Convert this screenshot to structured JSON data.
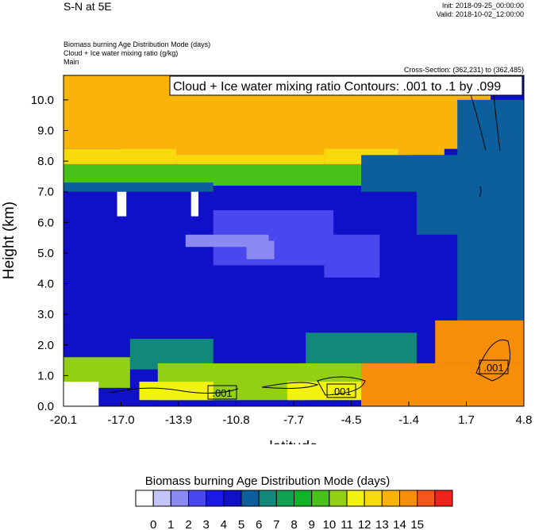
{
  "header": {
    "title": "S-N at 5E",
    "init": "Init: 2018-09-25_00:00:00",
    "valid": "Valid: 2018-10-02_12:00:00",
    "field1": "Biomass burning Age Distribution Mode   (days)",
    "field2": "Cloud + Ice water mixing ratio   (g/kg)",
    "field3": "Main",
    "cross_section": "Cross-Section: (362,231) to (362,485)"
  },
  "chart_data": {
    "type": "heatmap",
    "title": "S-N at 5E",
    "xlabel": "latitude",
    "ylabel": "Height (km)",
    "xlim": [
      -20.1,
      4.8
    ],
    "ylim": [
      0.0,
      10.8
    ],
    "x_ticks": [
      "-20.1",
      "-17.0",
      "-13.9",
      "-10.8",
      "-7.7",
      "-4.5",
      "-1.4",
      "1.7",
      "4.8"
    ],
    "y_ticks": [
      "0.0",
      "1.0",
      "2.0",
      "3.0",
      "4.0",
      "5.0",
      "6.0",
      "7.0",
      "8.0",
      "9.0",
      "10.0"
    ],
    "contour_label": "Cloud + Ice water mixing ratio Contours: .001 to .1 by .099",
    "contour_value_labels": [
      ".001",
      ".001",
      ".001"
    ],
    "colorbar": {
      "title": "Biomass burning Age Distribution Mode  (days)",
      "levels": [
        "0",
        "1",
        "2",
        "3",
        "4",
        "5",
        "6",
        "7",
        "8",
        "9",
        "10",
        "11",
        "12",
        "13",
        "14",
        "15"
      ],
      "colors": [
        "#ffffff",
        "#c4c4f8",
        "#8a8af2",
        "#4848ee",
        "#1a1ae6",
        "#0f10c8",
        "#0d5f9c",
        "#11887a",
        "#10a050",
        "#11b328",
        "#49c11b",
        "#93d014",
        "#f2f20e",
        "#f7d90c",
        "#f9b309",
        "#f78e0a",
        "#f4561c",
        "#f0221e"
      ]
    },
    "regions": [
      {
        "level": 14,
        "bands": [
          [
            -20.1,
            3.0,
            8.4,
            10.8
          ],
          [
            -17.0,
            -1.4,
            8.0,
            10.4
          ],
          [
            -2.2,
            0.5,
            8.2,
            9.6
          ]
        ]
      },
      {
        "level": 13,
        "bands": [
          [
            -20.1,
            -14.0,
            7.9,
            8.4
          ],
          [
            -14.0,
            -6.0,
            7.6,
            8.2
          ],
          [
            -6.0,
            -2.0,
            7.9,
            8.4
          ]
        ]
      },
      {
        "level": 10,
        "bands": [
          [
            -20.1,
            4.8,
            7.2,
            7.9
          ]
        ]
      },
      {
        "level": 6,
        "bands": [
          [
            -20.1,
            -12.0,
            6.0,
            7.3
          ],
          [
            -4.0,
            4.8,
            5.6,
            8.2
          ],
          [
            1.2,
            4.8,
            2.4,
            10.0
          ]
        ]
      },
      {
        "level": 5,
        "bands": [
          [
            -20.1,
            -1.0,
            2.5,
            7.0
          ],
          [
            -12.0,
            -3.0,
            2.0,
            3.2
          ]
        ]
      },
      {
        "level": 3,
        "bands": [
          [
            -12.0,
            -5.5,
            4.6,
            6.4
          ],
          [
            -6.0,
            -3.0,
            4.2,
            5.6
          ]
        ]
      },
      {
        "level": 2,
        "bands": [
          [
            -13.5,
            -9.0,
            5.2,
            5.6
          ],
          [
            -10.2,
            -8.7,
            4.8,
            5.4
          ]
        ]
      },
      {
        "level": 7,
        "bands": [
          [
            -16.5,
            -12.0,
            1.2,
            2.2
          ],
          [
            -7.0,
            -1.0,
            1.4,
            2.4
          ]
        ]
      },
      {
        "level": 11,
        "bands": [
          [
            -20.1,
            -16.5,
            0.6,
            1.6
          ],
          [
            -15.0,
            -7.0,
            0.2,
            1.4
          ],
          [
            -7.5,
            0.5,
            0.6,
            1.4
          ]
        ]
      },
      {
        "level": 12,
        "bands": [
          [
            -16.0,
            -12.0,
            0.2,
            0.8
          ],
          [
            -8.0,
            -1.0,
            0.2,
            0.8
          ]
        ]
      },
      {
        "level": 15,
        "bands": [
          [
            -4.0,
            4.8,
            0.0,
            1.4
          ],
          [
            0.0,
            4.8,
            1.4,
            2.8
          ]
        ]
      },
      {
        "level": 0,
        "bands": [
          [
            -20.1,
            -18.2,
            0.0,
            0.8
          ],
          [
            -17.2,
            -16.7,
            6.2,
            7.0
          ],
          [
            -13.2,
            -12.8,
            6.2,
            7.0
          ]
        ]
      }
    ]
  }
}
